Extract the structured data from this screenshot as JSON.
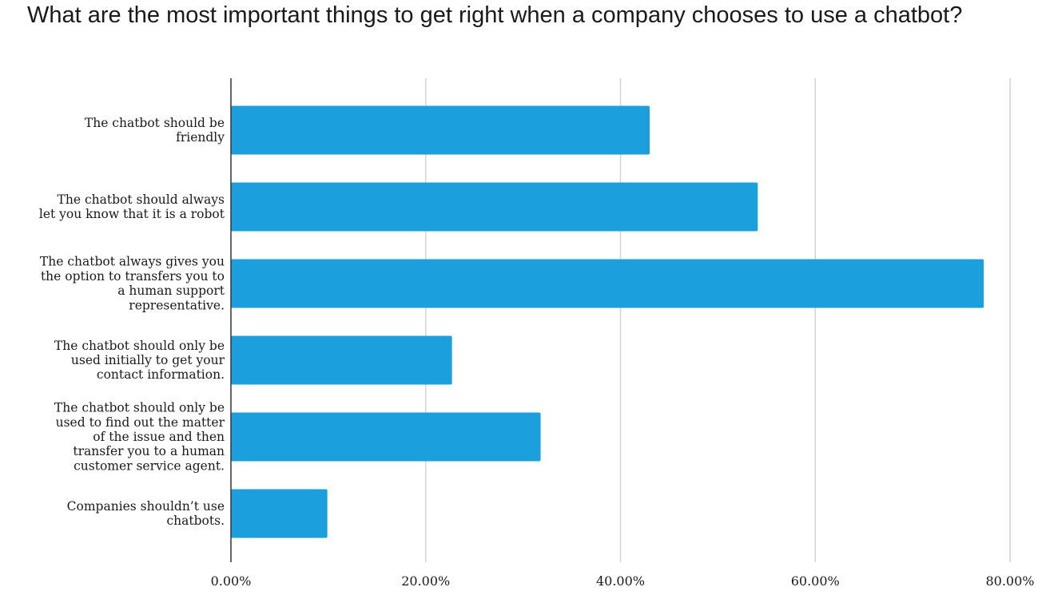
{
  "chart_data": {
    "type": "bar",
    "orientation": "horizontal",
    "title": "What are the most important things to get right when a company chooses to use a chatbot?",
    "categories": [
      [
        "The chatbot should be",
        "friendly"
      ],
      [
        "The chatbot should always",
        "let you know that it is a robot"
      ],
      [
        "The chatbot always gives you",
        "the option to transfers you to",
        "a human support",
        "representative."
      ],
      [
        "The chatbot should only be",
        "used initially to get your",
        "contact information."
      ],
      [
        "The chatbot should only be",
        "used to find out the matter",
        "of the issue and then",
        "transfer you to a human",
        "customer service agent."
      ],
      [
        "Companies shouldn’t use",
        "chatbots."
      ]
    ],
    "values": [
      43.0,
      54.1,
      77.3,
      22.7,
      31.8,
      9.9
    ],
    "xlim": [
      0,
      80
    ],
    "xticks": [
      0,
      20,
      40,
      60,
      80
    ],
    "xtick_labels": [
      "0.00%",
      "20.00%",
      "40.00%",
      "60.00%",
      "80.00%"
    ],
    "grid": true,
    "bar_color": "#1c9fdd",
    "grid_color": "#d4d4d4",
    "axis_color": "#333333"
  }
}
